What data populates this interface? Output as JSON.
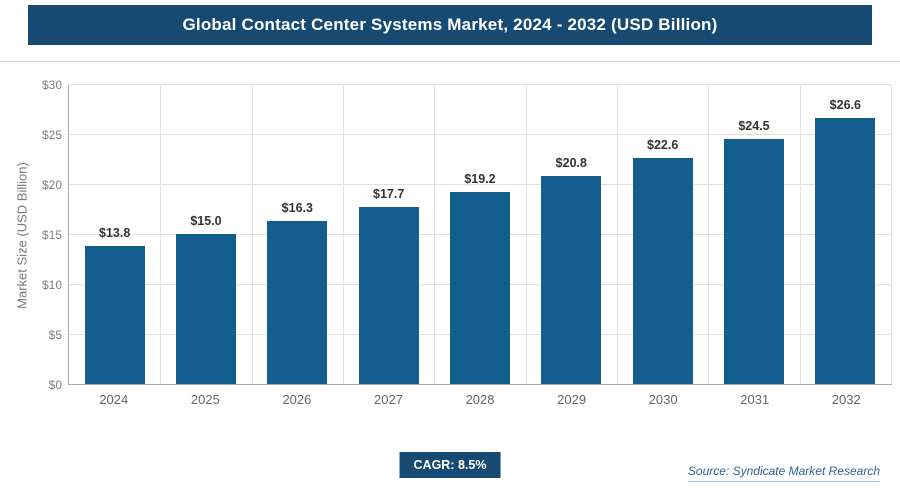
{
  "header": {
    "title": "Global Contact Center Systems Market, 2024 - 2032 (USD Billion)"
  },
  "chart_data": {
    "type": "bar",
    "title": "Global Contact Center Systems Market, 2024 - 2032 (USD Billion)",
    "categories": [
      "2024",
      "2025",
      "2026",
      "2027",
      "2028",
      "2029",
      "2030",
      "2031",
      "2032"
    ],
    "values": [
      13.8,
      15.0,
      16.3,
      17.7,
      19.2,
      20.8,
      22.6,
      24.5,
      26.6
    ],
    "value_labels": [
      "$13.8",
      "$15.0",
      "$16.3",
      "$17.7",
      "$19.2",
      "$20.8",
      "$22.6",
      "$24.5",
      "$26.6"
    ],
    "xlabel": "",
    "ylabel": "Market Size (USD Billion)",
    "ylim": [
      0,
      30
    ],
    "ytick_step": 5,
    "ytick_labels": [
      "$0",
      "$5",
      "$10",
      "$15",
      "$20",
      "$25",
      "$30"
    ],
    "grid": true,
    "legend": "none",
    "bar_color": "#135e8c"
  },
  "footer": {
    "cagr_label": "CAGR: 8.5%",
    "source": "Source: Syndicate Market Research"
  },
  "colors": {
    "header_bg": "#164a72",
    "bar": "#135e8c",
    "badge_bg": "#164a72",
    "source_text": "#2a6496"
  }
}
